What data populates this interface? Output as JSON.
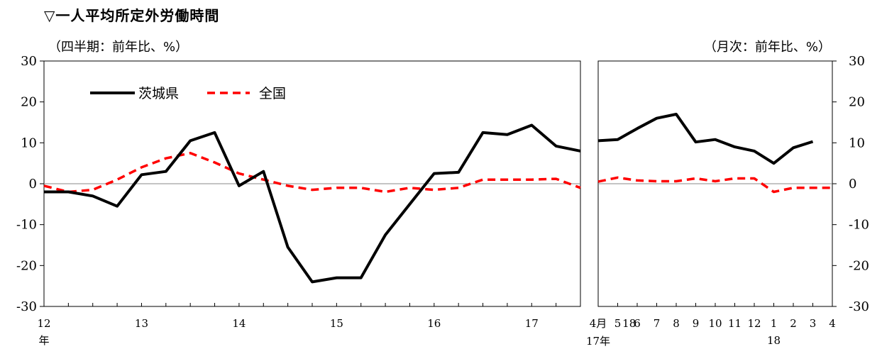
{
  "title": "▽一人平均所定外労働時間",
  "unit_left": "（四半期：前年比、%）",
  "unit_right": "（月次：前年比、%）",
  "colors": {
    "ibaraki": "#000000",
    "national": "#ff0000"
  },
  "chart_data": [
    {
      "type": "line",
      "frequency": "quarterly",
      "ylim": [
        -30,
        30
      ],
      "yticks": [
        "30",
        "20",
        "10",
        "0",
        "-10",
        "-20",
        "-30"
      ],
      "x_labels": [
        "12",
        "13",
        "14",
        "15",
        "16",
        "17",
        "18"
      ],
      "x_suffix": "年",
      "legend": [
        "茨城県",
        "全国"
      ],
      "series": [
        {
          "name": "茨城県",
          "values": [
            -2,
            -2,
            -3,
            -5.5,
            2.2,
            3,
            10.5,
            12.5,
            -0.5,
            3,
            -15.5,
            -24,
            -23,
            -23,
            -12.5,
            -5,
            2.5,
            2.8,
            12.5,
            12,
            14.3,
            9.2,
            8
          ]
        },
        {
          "name": "全国",
          "values": [
            -0.5,
            -2,
            -1.5,
            1,
            4,
            6.2,
            7.5,
            5.2,
            2.5,
            1,
            -0.5,
            -1.5,
            -1,
            -1,
            -2,
            -1,
            -1.5,
            -1,
            1,
            1,
            1,
            1.2,
            -1
          ]
        }
      ]
    },
    {
      "type": "line",
      "frequency": "monthly",
      "ylim": [
        -30,
        30
      ],
      "yticks": [
        "30",
        "20",
        "10",
        "0",
        "-10",
        "-20",
        "-30"
      ],
      "x_labels": [
        "4月",
        "5",
        "6",
        "7",
        "8",
        "9",
        "10",
        "11",
        "12",
        "1",
        "2",
        "3",
        "4"
      ],
      "x_year_labels": {
        "first": "17年",
        "jan": "18"
      },
      "series": [
        {
          "name": "茨城県",
          "values": [
            10.5,
            10.8,
            13.5,
            16,
            17,
            10.2,
            10.8,
            9,
            8,
            5,
            8.8,
            10.3,
            null
          ]
        },
        {
          "name": "全国",
          "values": [
            0.5,
            1.5,
            0.8,
            0.6,
            0.6,
            1.3,
            0.6,
            1.3,
            1.3,
            -2,
            -1,
            -1,
            -1
          ]
        }
      ]
    }
  ]
}
